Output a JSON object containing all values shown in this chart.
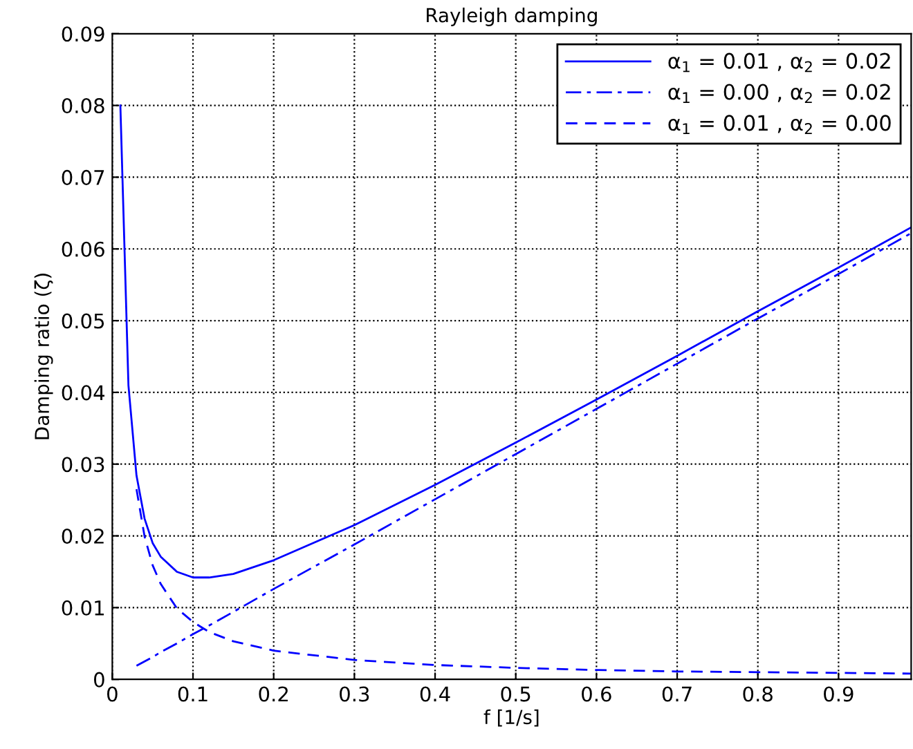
{
  "chart_data": {
    "type": "line",
    "title": "Rayleigh damping",
    "xlabel": "f [1/s]",
    "ylabel": "Damping ratio (ζ)",
    "xlim": [
      0,
      0.99
    ],
    "ylim": [
      0,
      0.09
    ],
    "xticks": [
      0,
      0.1,
      0.2,
      0.3,
      0.4,
      0.5,
      0.6,
      0.7,
      0.8,
      0.9
    ],
    "yticks": [
      0,
      0.01,
      0.02,
      0.03,
      0.04,
      0.05,
      0.06,
      0.07,
      0.08,
      0.09
    ],
    "grid": true,
    "legend": "top right",
    "marker": "none",
    "series": [
      {
        "name": "α$_{1}$ = 0.01 , α$_{2}$ = 0.02",
        "color": "#0000ff",
        "line_style": "solid",
        "x": [
          0.01,
          0.02,
          0.03,
          0.04,
          0.05,
          0.06,
          0.08,
          0.1,
          0.12,
          0.15,
          0.2,
          0.3,
          0.4,
          0.5,
          0.6,
          0.7,
          0.8,
          0.9,
          0.99
        ],
        "values": [
          0.08,
          0.041,
          0.0284,
          0.0224,
          0.019,
          0.0171,
          0.015,
          0.0142,
          0.0142,
          0.0147,
          0.0166,
          0.0215,
          0.0271,
          0.033,
          0.039,
          0.0451,
          0.0513,
          0.0574,
          0.063
        ]
      },
      {
        "name": "α$_{1}$ = 0.00 , α$_{2}$ = 0.02",
        "color": "#0000ff",
        "line_style": "dashdot",
        "x": [
          0.03,
          0.04,
          0.05,
          0.06,
          0.08,
          0.1,
          0.12,
          0.15,
          0.2,
          0.3,
          0.4,
          0.5,
          0.6,
          0.7,
          0.8,
          0.9,
          0.99
        ],
        "values": [
          0.0019,
          0.0025,
          0.0031,
          0.0038,
          0.005,
          0.0063,
          0.0075,
          0.0094,
          0.0126,
          0.0188,
          0.0251,
          0.0314,
          0.0377,
          0.044,
          0.0503,
          0.0565,
          0.0622
        ]
      },
      {
        "name": "α$_{1}$ = 0.01 , α$_{2}$ = 0.00",
        "color": "#0000ff",
        "line_style": "dashed",
        "x": [
          0.03,
          0.04,
          0.05,
          0.06,
          0.08,
          0.1,
          0.12,
          0.15,
          0.2,
          0.3,
          0.4,
          0.5,
          0.6,
          0.7,
          0.8,
          0.9,
          0.99
        ],
        "values": [
          0.0265,
          0.0199,
          0.0159,
          0.0133,
          0.0099,
          0.008,
          0.0066,
          0.0053,
          0.004,
          0.0027,
          0.002,
          0.0016,
          0.0013,
          0.0011,
          0.001,
          0.0009,
          0.0008
        ]
      }
    ]
  }
}
